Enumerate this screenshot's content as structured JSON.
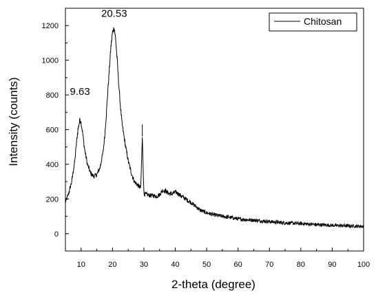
{
  "chart_data": {
    "type": "line",
    "title": "",
    "xlabel": "2-theta (degree)",
    "ylabel": "Intensity (counts)",
    "xlim": [
      5,
      100
    ],
    "ylim": [
      -100,
      1300
    ],
    "xticks": [
      10,
      20,
      30,
      40,
      50,
      60,
      70,
      80,
      90,
      100
    ],
    "yticks": [
      0,
      200,
      400,
      600,
      800,
      1000,
      1200
    ],
    "grid": false,
    "legend": "top-right",
    "series": [
      {
        "name": "Chitosan",
        "color": "#000000",
        "x": [
          5,
          6,
          7,
          8,
          8.5,
          9,
          9.63,
          10,
          10.5,
          11,
          12,
          13,
          14,
          15,
          16,
          17,
          17.5,
          18,
          18.5,
          19,
          19.5,
          20,
          20.53,
          21,
          21.5,
          22,
          22.5,
          23,
          24,
          25,
          26,
          27,
          28,
          29,
          29.5,
          30,
          31,
          32,
          33,
          34,
          35,
          36,
          37,
          38,
          39,
          40,
          41,
          42,
          43,
          44,
          45,
          46,
          47,
          48,
          50,
          52,
          55,
          58,
          60,
          63,
          65,
          68,
          70,
          73,
          75,
          78,
          80,
          83,
          85,
          88,
          90,
          93,
          95,
          98,
          100
        ],
        "y": [
          180,
          230,
          300,
          420,
          520,
          600,
          660,
          640,
          580,
          500,
          400,
          350,
          330,
          340,
          380,
          470,
          560,
          680,
          820,
          950,
          1080,
          1160,
          1190,
          1120,
          1000,
          860,
          740,
          640,
          520,
          420,
          350,
          300,
          280,
          265,
          560,
          230,
          225,
          220,
          220,
          215,
          225,
          250,
          245,
          230,
          230,
          240,
          230,
          215,
          205,
          190,
          180,
          165,
          150,
          135,
          120,
          110,
          100,
          92,
          85,
          80,
          78,
          72,
          70,
          65,
          62,
          60,
          58,
          55,
          52,
          50,
          48,
          46,
          45,
          43,
          42
        ],
        "peaks": [
          {
            "x": 29.5,
            "y": 630
          }
        ]
      }
    ],
    "annotations": [
      {
        "text": "9.63",
        "x": 9.63,
        "y": 800
      },
      {
        "text": "20.53",
        "x": 20.53,
        "y": 1250
      }
    ]
  }
}
